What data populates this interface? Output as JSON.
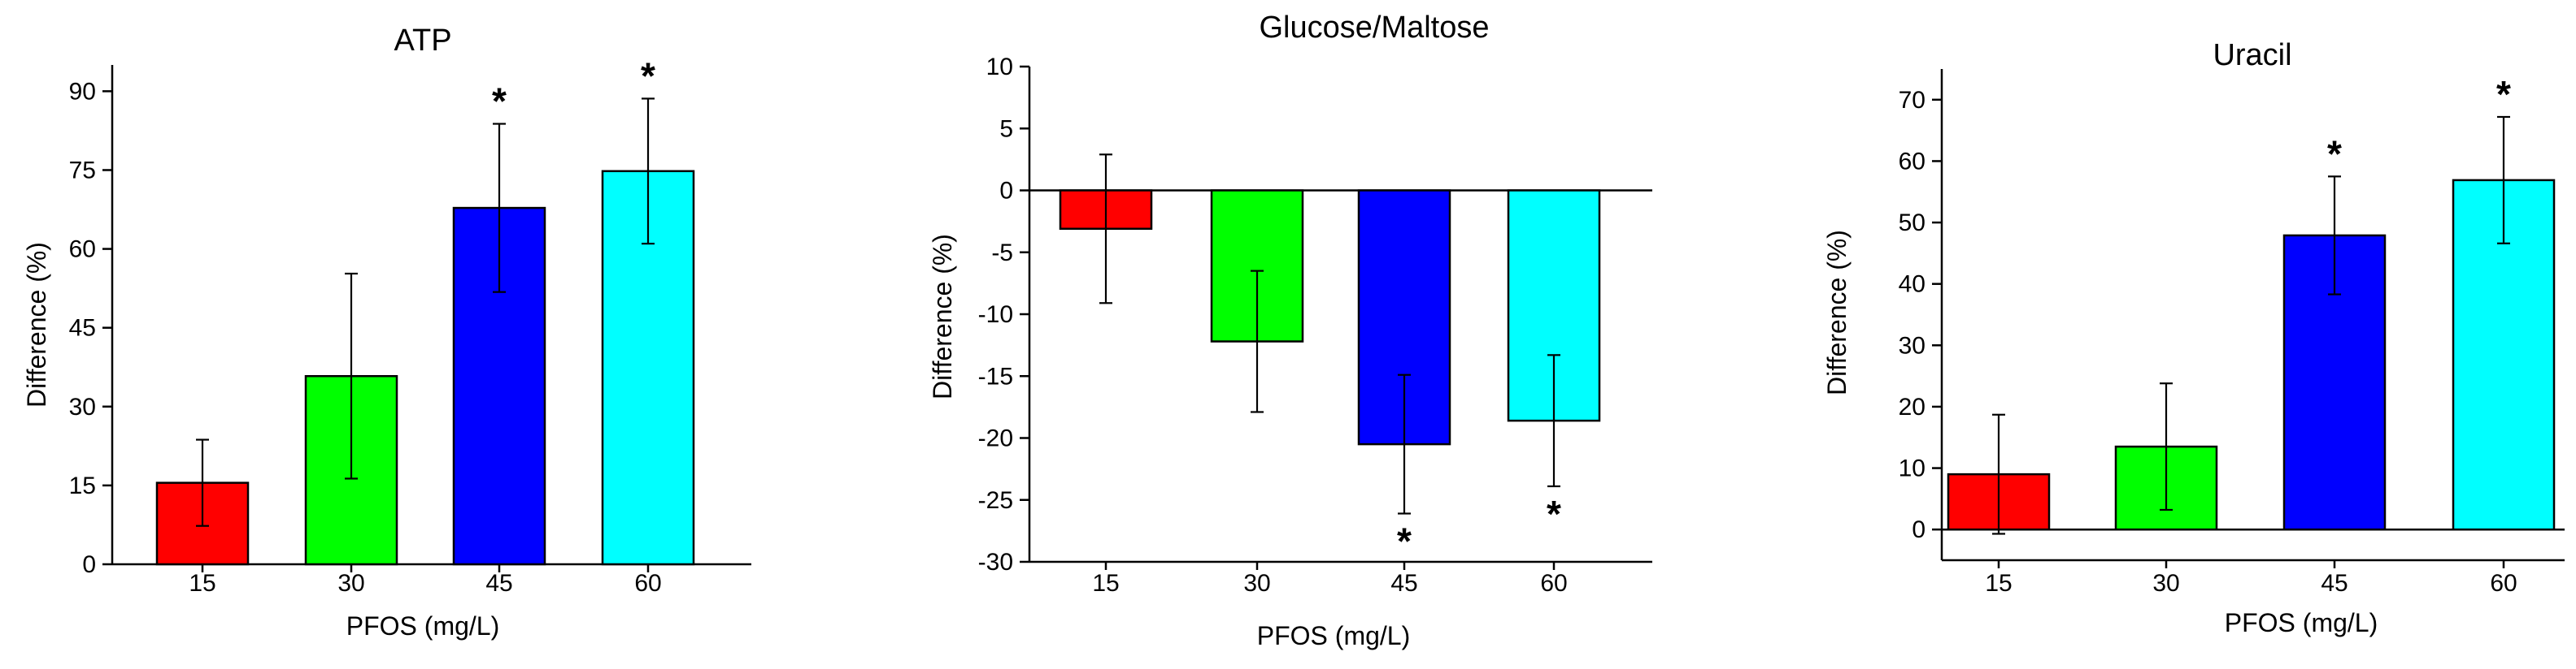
{
  "chart_data": [
    {
      "type": "bar",
      "title": "ATP",
      "xlabel": "PFOS (mg/L)",
      "ylabel": "Difference (%)",
      "categories": [
        "15",
        "30",
        "45",
        "60"
      ],
      "values": [
        15.5,
        35.8,
        67.8,
        74.8
      ],
      "errors": [
        8.2,
        19.5,
        16.0,
        13.8
      ],
      "significance": [
        "",
        "",
        "*",
        "*"
      ],
      "ylim": [
        0,
        95
      ],
      "yticks": [
        "0",
        "15",
        "30",
        "45",
        "60",
        "75",
        "90"
      ],
      "colors": [
        "#ff0000",
        "#00ff00",
        "#0000ff",
        "#00ffff"
      ]
    },
    {
      "type": "bar",
      "title": "Glucose/Maltose",
      "xlabel": "PFOS (mg/L)",
      "ylabel": "Difference (%)",
      "categories": [
        "15",
        "30",
        "45",
        "60"
      ],
      "values": [
        -3.1,
        -12.2,
        -20.5,
        -18.6
      ],
      "errors": [
        6.0,
        5.7,
        5.6,
        5.3
      ],
      "significance": [
        "",
        "",
        "*",
        "*"
      ],
      "ylim": [
        -30,
        10
      ],
      "yticks": [
        "-30",
        "-25",
        "-20",
        "-15",
        "-10",
        "-5",
        "0",
        "5",
        "10"
      ],
      "colors": [
        "#ff0000",
        "#00ff00",
        "#0000ff",
        "#00ffff"
      ]
    },
    {
      "type": "bar",
      "title": "Uracil",
      "xlabel": "PFOS (mg/L)",
      "ylabel": "Difference (%)",
      "categories": [
        "15",
        "30",
        "45",
        "60"
      ],
      "values": [
        9.0,
        13.5,
        47.9,
        56.9
      ],
      "errors": [
        9.7,
        10.3,
        9.6,
        10.3
      ],
      "significance": [
        "",
        "",
        "*",
        "*"
      ],
      "ylim": [
        -5,
        75
      ],
      "yticks": [
        "0",
        "10",
        "20",
        "30",
        "40",
        "50",
        "60",
        "70"
      ],
      "colors": [
        "#ff0000",
        "#00ff00",
        "#0000ff",
        "#00ffff"
      ]
    }
  ]
}
